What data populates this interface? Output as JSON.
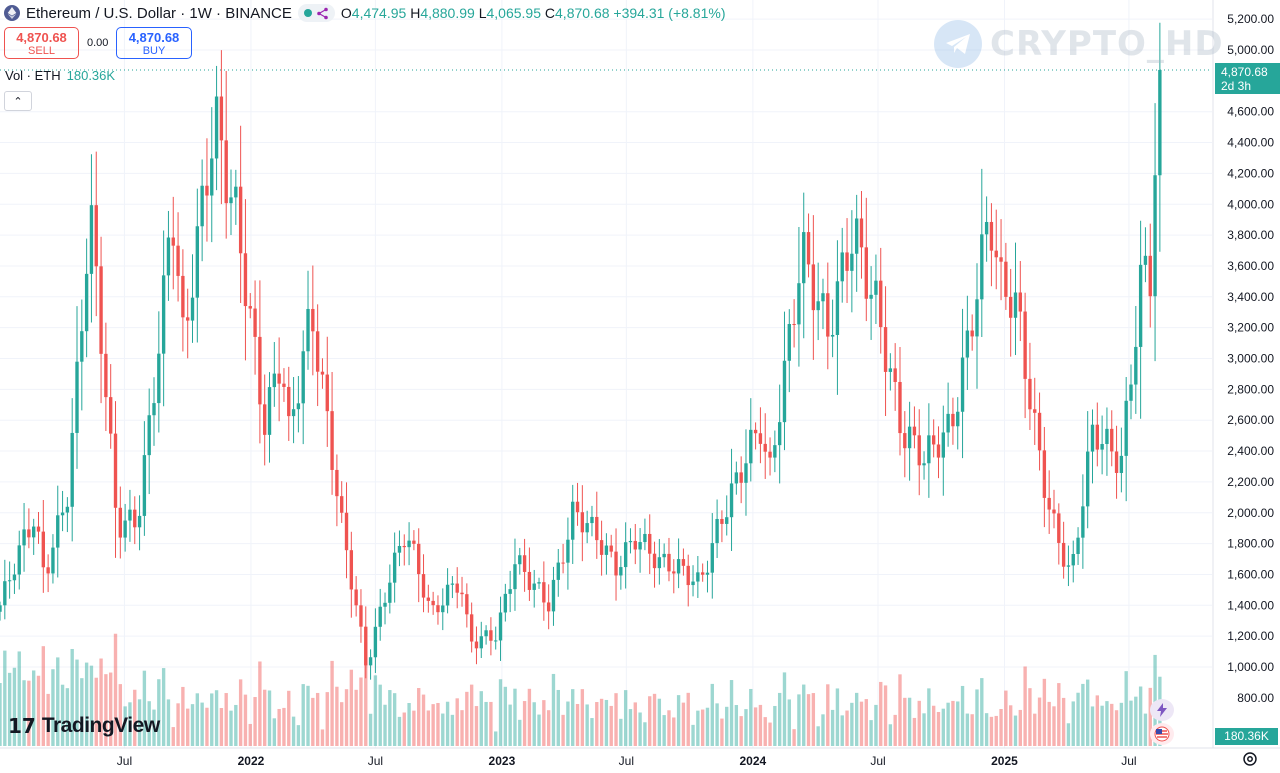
{
  "header": {
    "symbol_title": "Ethereum / U.S. Dollar · 1W · BINANCE",
    "open_label": "O",
    "open": "4,474.95",
    "high_label": "H",
    "high": "4,880.99",
    "low_label": "L",
    "low": "4,065.95",
    "close_label": "C",
    "close": "4,870.68",
    "change": "+394.31 (+8.81%)"
  },
  "trade": {
    "sell_price": "4,870.68",
    "sell_label": "SELL",
    "spread": "0.00",
    "buy_price": "4,870.68",
    "buy_label": "BUY"
  },
  "volume_legend": {
    "label": "Vol · ETH",
    "value": "180.36K"
  },
  "watermark": "CRYPTO_HD",
  "last_price_tag": {
    "price": "4,870.68",
    "countdown": "2d 3h"
  },
  "volume_tag": "180.36K",
  "brand": "TradingView",
  "colors": {
    "up": "#26a69a",
    "down": "#ef5350"
  },
  "chart_data": {
    "type": "candlestick",
    "interval": "1W",
    "y_ticks": [
      "1,000.00",
      "1,200.00",
      "1,400.00",
      "1,600.00",
      "1,800.00",
      "2,000.00",
      "2,200.00",
      "2,400.00",
      "2,600.00",
      "2,800.00",
      "3,000.00",
      "3,200.00",
      "3,400.00",
      "3,600.00",
      "3,800.00",
      "4,000.00",
      "4,200.00",
      "4,400.00",
      "4,600.00",
      "5,000.00",
      "5,200.00"
    ],
    "partial_y_tick": "800.00",
    "x_ticks": [
      "Jul",
      "2022",
      "Jul",
      "2023",
      "Jul",
      "2024",
      "Jul",
      "2025",
      "Jul"
    ],
    "ylim": [
      650,
      5300
    ],
    "anchors": [
      [
        "2021-01-01",
        1400
      ],
      [
        "2021-02-20",
        1950
      ],
      [
        "2021-03-06",
        1600
      ],
      [
        "2021-04-10",
        2200
      ],
      [
        "2021-05-12",
        3900
      ],
      [
        "2021-06-20",
        1900
      ],
      [
        "2021-07-20",
        2000
      ],
      [
        "2021-08-25",
        3300
      ],
      [
        "2021-09-08",
        3950
      ],
      [
        "2021-09-25",
        3000
      ],
      [
        "2021-11-10",
        4650
      ],
      [
        "2021-12-10",
        4000
      ],
      [
        "2022-01-20",
        2500
      ],
      [
        "2022-02-15",
        3000
      ],
      [
        "2022-02-24",
        2500
      ],
      [
        "2022-03-30",
        3400
      ],
      [
        "2022-04-10",
        3000
      ],
      [
        "2022-05-12",
        1900
      ],
      [
        "2022-06-18",
        1000
      ],
      [
        "2022-07-20",
        1600
      ],
      [
        "2022-08-14",
        1900
      ],
      [
        "2022-09-20",
        1300
      ],
      [
        "2022-11-01",
        1600
      ],
      [
        "2022-11-15",
        1200
      ],
      [
        "2022-12-25",
        1200
      ],
      [
        "2023-01-20",
        1650
      ],
      [
        "2023-03-10",
        1450
      ],
      [
        "2023-04-15",
        2000
      ],
      [
        "2023-06-15",
        1650
      ],
      [
        "2023-07-15",
        1900
      ],
      [
        "2023-08-20",
        1650
      ],
      [
        "2023-10-15",
        1550
      ],
      [
        "2023-11-15",
        2000
      ],
      [
        "2024-01-12",
        2500
      ],
      [
        "2024-01-25",
        2200
      ],
      [
        "2024-03-12",
        3800
      ],
      [
        "2024-04-20",
        3100
      ],
      [
        "2024-05-27",
        3800
      ],
      [
        "2024-07-01",
        3400
      ],
      [
        "2024-08-05",
        2500
      ],
      [
        "2024-09-06",
        2300
      ],
      [
        "2024-10-15",
        2600
      ],
      [
        "2024-11-10",
        3200
      ],
      [
        "2024-12-10",
        3900
      ],
      [
        "2024-12-25",
        3400
      ],
      [
        "2025-01-20",
        3300
      ],
      [
        "2025-02-10",
        2700
      ],
      [
        "2025-03-10",
        2000
      ],
      [
        "2025-04-08",
        1550
      ],
      [
        "2025-05-10",
        2500
      ],
      [
        "2025-06-20",
        2400
      ],
      [
        "2025-07-20",
        3600
      ],
      [
        "2025-08-01",
        3500
      ],
      [
        "2025-08-15",
        4870
      ]
    ]
  }
}
